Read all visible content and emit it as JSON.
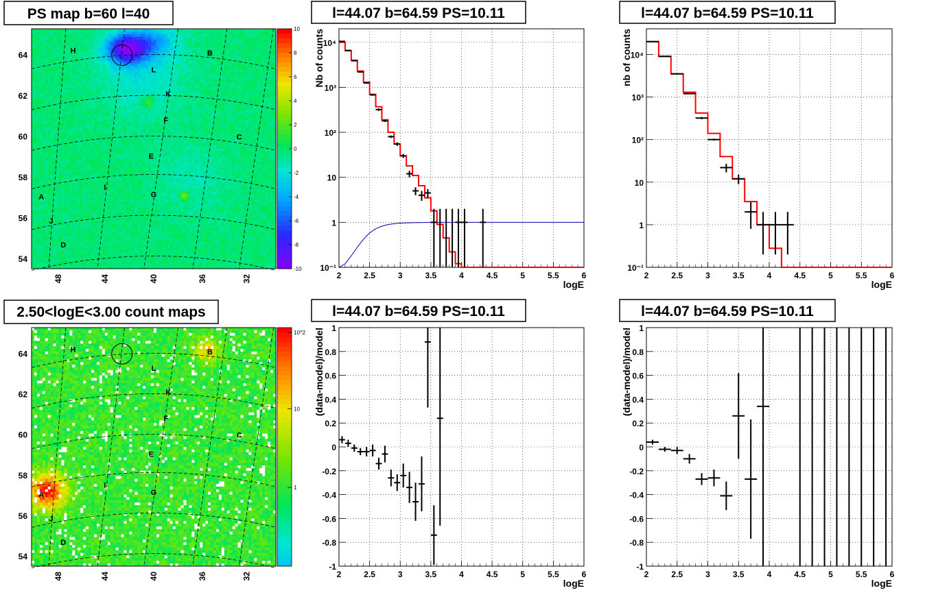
{
  "chart_data": [
    {
      "id": "ps_map",
      "type": "heatmap",
      "title": "PS map b=60 l=40",
      "x_ticks": [
        "48",
        "44",
        "40",
        "36",
        "32"
      ],
      "y_ticks": [
        "64",
        "62",
        "60",
        "58",
        "56",
        "54"
      ],
      "colorbar_ticks": [
        "10",
        "8",
        "6",
        "4",
        "2",
        "0",
        "-2",
        "-4",
        "-6",
        "-8",
        "-10"
      ],
      "zlim": [
        -10,
        10
      ],
      "source_labels": [
        "H",
        "B",
        "L",
        "K",
        "F",
        "C",
        "E",
        "I",
        "G",
        "A",
        "J",
        "D"
      ],
      "circle_marker": {
        "l": 42.9,
        "b": 64.0
      },
      "colors": {
        "low": "#8a00ff",
        "mid": "#00e060",
        "high": "#ff0000"
      }
    },
    {
      "id": "count_map",
      "type": "heatmap",
      "title": "2.50<logE<3.00 count maps",
      "x_ticks": [
        "48",
        "44",
        "40",
        "36",
        "32"
      ],
      "y_ticks": [
        "64",
        "62",
        "60",
        "58",
        "56",
        "54"
      ],
      "colorbar_ticks": [
        "10^2",
        "10",
        "1"
      ],
      "colorbar_scale": "log",
      "source_labels": [
        "H",
        "B",
        "L",
        "K",
        "F",
        "C",
        "E",
        "I",
        "G",
        "A",
        "J",
        "D"
      ],
      "circle_marker": {
        "l": 42.9,
        "b": 64.0
      }
    },
    {
      "id": "spec1",
      "type": "line",
      "title": "l=44.07 b=64.59 PS=10.11",
      "xlabel": "logE",
      "ylabel": "Nb of counts",
      "xlim": [
        2,
        6
      ],
      "ylim": [
        0.1,
        20000
      ],
      "yscale": "log",
      "x_ticks": [
        "2",
        "2.5",
        "3",
        "3.5",
        "4",
        "4.5",
        "5",
        "5.5",
        "6"
      ],
      "y_ticks": [
        "10⁻¹",
        "1",
        "10",
        "10²",
        "10³",
        "10⁴"
      ],
      "grid": true,
      "series": [
        {
          "style": "step",
          "color": "#ff0000",
          "edges": [
            2.0,
            2.1,
            2.2,
            2.3,
            2.4,
            2.5,
            2.6,
            2.7,
            2.8,
            2.9,
            3.0,
            3.1,
            3.2,
            3.3,
            3.4,
            3.5,
            3.6,
            3.7,
            3.8,
            3.9,
            4.0,
            4.1,
            4.2
          ],
          "values": [
            10000,
            6500,
            4000,
            2300,
            1300,
            700,
            370,
            190,
            100,
            55,
            30,
            18,
            11,
            6.5,
            3.5,
            1.8,
            0.9,
            0.45,
            0.22,
            0.12,
            0.1,
            0.1
          ]
        },
        {
          "style": "line",
          "color": "#0000aa",
          "x": [
            2.0,
            2.1,
            2.2,
            2.3,
            2.4,
            2.5,
            2.6,
            2.7,
            2.8,
            2.9,
            3.0,
            3.2,
            3.4,
            3.6,
            4.0,
            5.0,
            6.0
          ],
          "y": [
            0.1,
            0.12,
            0.18,
            0.28,
            0.42,
            0.58,
            0.72,
            0.82,
            0.89,
            0.93,
            0.96,
            0.98,
            0.99,
            1,
            1,
            1,
            1
          ]
        },
        {
          "style": "errorbar",
          "color": "#000000",
          "x": [
            2.05,
            2.15,
            2.25,
            2.35,
            2.45,
            2.55,
            2.65,
            2.75,
            2.85,
            2.95,
            3.05,
            3.15,
            3.25,
            3.35,
            3.45,
            3.55,
            3.65,
            3.75,
            3.85,
            3.95,
            4.05,
            4.35
          ],
          "y": [
            10500,
            6600,
            3900,
            2200,
            1250,
            680,
            320,
            180,
            80,
            55,
            30,
            12,
            5,
            4,
            4.5,
            1,
            1,
            1,
            1,
            1,
            1,
            1
          ],
          "ylo": [
            10400,
            6500,
            3800,
            2150,
            1200,
            650,
            300,
            170,
            75,
            50,
            27,
            10,
            4,
            3,
            3.5,
            0.1,
            0.1,
            0.1,
            0.1,
            0.1,
            0.1,
            0.1
          ],
          "yhi": [
            10600,
            6700,
            4000,
            2250,
            1300,
            710,
            340,
            190,
            85,
            60,
            33,
            14,
            6,
            5,
            5.5,
            2,
            2,
            2,
            2,
            2,
            2,
            2
          ],
          "drawn": [
            true,
            true,
            true,
            true,
            true,
            true,
            true,
            true,
            true,
            true,
            true,
            true,
            true,
            true,
            true,
            true,
            false,
            false,
            false,
            true,
            true,
            true
          ]
        }
      ]
    },
    {
      "id": "spec2",
      "type": "line",
      "title": "l=44.07 b=64.59 PS=10.11",
      "xlabel": "logE",
      "ylabel": "nb of counts",
      "xlim": [
        2,
        6
      ],
      "ylim": [
        0.1,
        40000
      ],
      "yscale": "log",
      "x_ticks": [
        "2",
        "2.5",
        "3",
        "3.5",
        "4",
        "4.5",
        "5",
        "5.5",
        "6"
      ],
      "y_ticks": [
        "10⁻¹",
        "1",
        "10",
        "10²",
        "10³",
        "10⁴"
      ],
      "grid": true,
      "series": [
        {
          "style": "step",
          "color": "#ff0000",
          "edges": [
            2.0,
            2.2,
            2.4,
            2.6,
            2.8,
            3.0,
            3.2,
            3.4,
            3.6,
            3.8,
            4.0,
            4.2,
            4.4
          ],
          "values": [
            20000,
            9000,
            3500,
            1300,
            420,
            140,
            40,
            12,
            3.5,
            1,
            0.28,
            0.1
          ]
        },
        {
          "style": "errorbar",
          "color": "#000000",
          "x": [
            2.1,
            2.3,
            2.5,
            2.7,
            2.9,
            3.1,
            3.3,
            3.5,
            3.7,
            3.9,
            4.1,
            4.3
          ],
          "y": [
            20000,
            9000,
            3500,
            1200,
            320,
            100,
            22,
            12,
            2,
            1,
            1,
            1
          ],
          "ylo": [
            19800,
            8900,
            3450,
            1160,
            300,
            95,
            17,
            9,
            0.8,
            0.2,
            0.2,
            0.2
          ],
          "yhi": [
            20200,
            9100,
            3550,
            1240,
            340,
            105,
            27,
            15,
            3.4,
            2,
            2,
            2
          ]
        }
      ]
    },
    {
      "id": "res1",
      "type": "scatter",
      "title": "l=44.07 b=64.59 PS=10.11",
      "xlabel": "logE",
      "ylabel": "(data-model)/model",
      "xlim": [
        2,
        6
      ],
      "ylim": [
        -1,
        1
      ],
      "x_ticks": [
        "2",
        "2.5",
        "3",
        "3.5",
        "4",
        "4.5",
        "5",
        "5.5",
        "6"
      ],
      "y_ticks": [
        "1",
        "0.8",
        "0.6",
        "0.4",
        "0.2",
        "0",
        "-0.2",
        "-0.4",
        "-0.6",
        "-0.8",
        "-1"
      ],
      "grid": true,
      "series": [
        {
          "style": "errorbar",
          "color": "#000000",
          "x": [
            2.05,
            2.15,
            2.25,
            2.35,
            2.45,
            2.55,
            2.65,
            2.75,
            2.85,
            2.95,
            3.05,
            3.15,
            3.25,
            3.35,
            3.45,
            3.55,
            3.65
          ],
          "y": [
            0.06,
            0.03,
            -0.01,
            -0.04,
            -0.04,
            -0.03,
            -0.14,
            -0.06,
            -0.26,
            -0.3,
            -0.24,
            -0.34,
            -0.46,
            -0.31,
            0.88,
            -0.74,
            0.24
          ],
          "err": [
            0.03,
            0.03,
            0.03,
            0.03,
            0.04,
            0.05,
            0.05,
            0.07,
            0.07,
            0.07,
            0.1,
            0.13,
            0.16,
            0.23,
            0.55,
            0.25,
            0.9
          ]
        }
      ]
    },
    {
      "id": "res2",
      "type": "scatter",
      "title": "l=44.07 b=64.59 PS=10.11",
      "xlabel": "logE",
      "ylabel": "(data-model)/model",
      "xlim": [
        2,
        6
      ],
      "ylim": [
        -1,
        1
      ],
      "x_ticks": [
        "2",
        "2.5",
        "3",
        "3.5",
        "4",
        "4.5",
        "5",
        "5.5",
        "6"
      ],
      "y_ticks": [
        "1",
        "0.8",
        "0.6",
        "0.4",
        "0.2",
        "0",
        "-0.2",
        "-0.4",
        "-0.6",
        "-0.8",
        "-1"
      ],
      "grid": true,
      "series": [
        {
          "style": "errorbar",
          "color": "#000000",
          "x": [
            2.1,
            2.3,
            2.5,
            2.7,
            2.9,
            3.1,
            3.3,
            3.5,
            3.7,
            3.9,
            4.5,
            4.7,
            4.9,
            5.1,
            5.3,
            5.5,
            5.7,
            5.9
          ],
          "y": [
            0.04,
            -0.02,
            -0.03,
            -0.1,
            -0.27,
            -0.26,
            -0.41,
            0.26,
            -0.27,
            0.34,
            0,
            0,
            0,
            0,
            0,
            0,
            0,
            0
          ],
          "err": [
            0.02,
            0.02,
            0.03,
            0.04,
            0.05,
            0.07,
            0.12,
            0.36,
            0.5,
            2,
            2,
            2,
            2,
            2,
            2,
            2,
            2,
            2
          ],
          "xerr_drawn": [
            true,
            true,
            true,
            true,
            true,
            true,
            true,
            true,
            true,
            true,
            false,
            false,
            false,
            false,
            false,
            false,
            false,
            false
          ]
        }
      ]
    }
  ]
}
